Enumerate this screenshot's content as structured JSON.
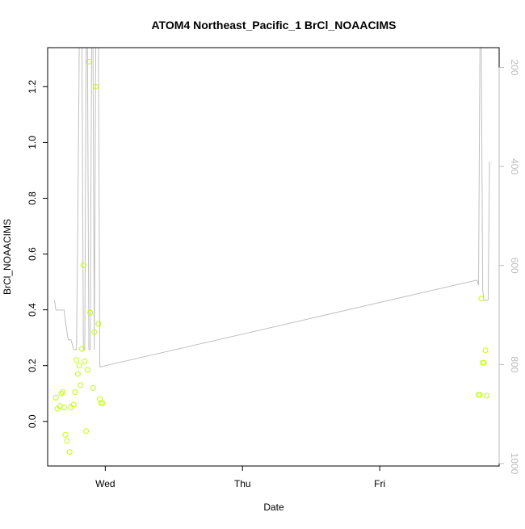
{
  "chart_data": {
    "type": "scatter",
    "title": "ATOM4 Northeast_Pacific_1 BrCl_NOAACIMS",
    "xlabel": "Date",
    "ylabel": "BrCl_NOAACIMS",
    "x_ticks": [
      "Wed",
      "Thu",
      "Fri"
    ],
    "x_tick_values": [
      0.0,
      1.0,
      2.0
    ],
    "xlim": [
      -0.42,
      2.87
    ],
    "ylim": [
      -0.16,
      1.34
    ],
    "y_ticks": [
      0.0,
      0.2,
      0.4,
      0.6,
      0.8,
      1.0,
      1.2
    ],
    "y2_ticks": [
      200,
      400,
      600,
      800,
      1000
    ],
    "y2lim": [
      1005,
      160
    ],
    "y2_reversed": true,
    "colors": {
      "points": "#bfff00",
      "altitude_line": "#c0c0c0",
      "axis": "#000000",
      "right_axis": "#bbbbbb"
    },
    "series": [
      {
        "type": "points",
        "x": [
          -0.36,
          -0.35,
          -0.33,
          -0.32,
          -0.31,
          -0.3,
          -0.29,
          -0.28,
          -0.26,
          -0.25,
          -0.23,
          -0.22,
          -0.21,
          -0.2,
          -0.19,
          -0.18,
          -0.17,
          -0.16,
          -0.15,
          -0.14,
          -0.13,
          -0.12,
          -0.11,
          -0.09,
          -0.08,
          -0.07,
          -0.05,
          -0.04,
          -0.03,
          -0.02,
          2.72,
          2.73,
          2.74,
          2.75,
          2.76,
          2.77,
          2.78
        ],
        "y": [
          0.085,
          0.045,
          0.055,
          0.1,
          0.105,
          0.05,
          -0.048,
          -0.07,
          -0.11,
          0.05,
          0.06,
          0.105,
          0.22,
          0.17,
          0.2,
          0.13,
          0.26,
          0.56,
          0.215,
          -0.035,
          0.185,
          1.29,
          0.39,
          0.12,
          0.32,
          1.2,
          0.35,
          0.08,
          0.065,
          0.065,
          0.095,
          0.095,
          0.44,
          0.21,
          0.21,
          0.255,
          0.092
        ]
      },
      {
        "type": "line",
        "axis": "right",
        "x": [
          -0.37,
          -0.36,
          -0.35,
          -0.3,
          -0.29,
          -0.27,
          -0.25,
          -0.23,
          -0.21,
          -0.2,
          -0.19,
          -0.17,
          -0.16,
          -0.15,
          -0.14,
          -0.13,
          -0.12,
          -0.11,
          -0.1,
          -0.09,
          -0.08,
          -0.07,
          -0.05,
          -0.04,
          2.7,
          2.71,
          2.72,
          2.73,
          2.74,
          2.75,
          2.76,
          2.77,
          2.78,
          2.79,
          2.8
        ],
        "y": [
          670,
          690,
          690,
          690,
          715,
          750,
          750,
          770,
          770,
          500,
          160,
          160,
          770,
          770,
          160,
          160,
          770,
          770,
          160,
          160,
          770,
          160,
          160,
          805,
          630,
          630,
          640,
          160,
          160,
          650,
          670,
          670,
          670,
          670,
          390
        ]
      }
    ]
  }
}
